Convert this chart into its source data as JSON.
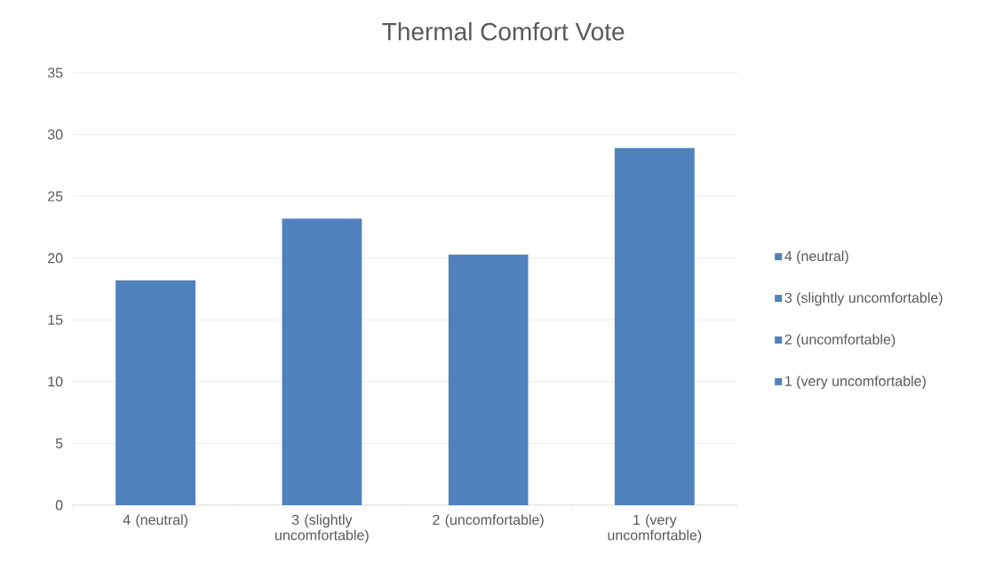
{
  "chart_data": {
    "type": "bar",
    "title": "Thermal Comfort Vote",
    "categories": [
      "4 (neutral)",
      "3 (slightly uncomfortable)",
      "2 (uncomfortable)",
      "1 (very uncomfortable)"
    ],
    "series": [
      {
        "name": "4 (neutral)",
        "color": "#4f81bd",
        "values": [
          18.2,
          null,
          null,
          null
        ]
      },
      {
        "name": "3 (slightly uncomfortable)",
        "color": "#4f81bd",
        "values": [
          null,
          23.2,
          null,
          null
        ]
      },
      {
        "name": "2 (uncomfortable)",
        "color": "#4f81bd",
        "values": [
          null,
          null,
          20.3,
          null
        ]
      },
      {
        "name": "1 (very uncomfortable)",
        "color": "#4f81bd",
        "values": [
          null,
          null,
          null,
          28.9
        ]
      }
    ],
    "ylim": [
      0,
      35
    ],
    "yticks": [
      0,
      5,
      10,
      15,
      20,
      25,
      30,
      35
    ],
    "grid": "y",
    "legend": "right"
  }
}
